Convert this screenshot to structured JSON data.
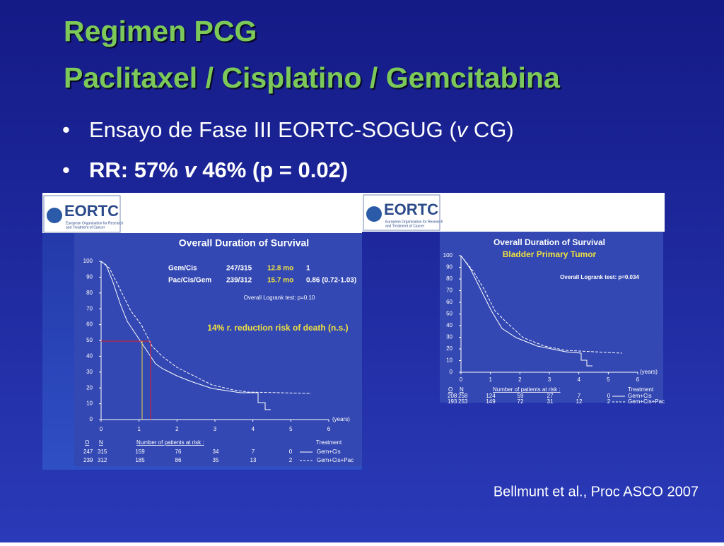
{
  "title": [
    "Regimen PCG",
    "Paclitaxel / Cisplatino / Gemcitabina"
  ],
  "bullets": [
    [
      "Ensayo de Fase III EORTC-SOGUG (",
      "v",
      " CG)"
    ],
    [
      "RR: 57% ",
      "v",
      "  46% (p = 0.02)"
    ]
  ],
  "citation": "Bellmunt et al., Proc ASCO 2007",
  "left_figure": {
    "logo": "EORTC",
    "logo_subtitle": [
      "European Organisation for Research",
      "and Treatment of Cancer"
    ],
    "title": "Overall Duration of Survival",
    "arms": [
      [
        "Gem/Cis",
        "247/315",
        "12.8 mo",
        "1"
      ],
      [
        "Pac/Cis/Gem",
        "239/312",
        "15.7 mo",
        "0.86 (0.72-1.03)"
      ]
    ],
    "logrank": "Overall Logrank test: p=0.10",
    "annotation": "14% r. reduction risk of death  (n.s.)",
    "yticks": [
      0,
      10,
      20,
      30,
      40,
      50,
      60,
      70,
      80,
      90,
      100
    ],
    "xticks": [
      0,
      1,
      2,
      3,
      4,
      5,
      6
    ],
    "x_unit": "(years)",
    "risk_headers": [
      "O",
      "N",
      "Number of patients at risk :",
      "Treatment"
    ],
    "risk_rows": [
      [
        "247",
        "315",
        "159",
        "76",
        "34",
        "7",
        "0",
        "Gem+Cis"
      ],
      [
        "239",
        "312",
        "185",
        "86",
        "35",
        "13",
        "2",
        "Gem+Cis+Pac"
      ]
    ]
  },
  "right_figure": {
    "logo": "EORTC",
    "logo_subtitle": [
      "European Organisation for Research",
      "and Treatment of Cancer"
    ],
    "title": "Overall Duration of Survival",
    "subtitle": "Bladder Primary Tumor",
    "logrank": "Overall Logrank test: p=0.034",
    "yticks": [
      0,
      10,
      20,
      30,
      40,
      50,
      60,
      70,
      80,
      90,
      100
    ],
    "xticks": [
      0,
      1,
      2,
      3,
      4,
      5,
      6
    ],
    "x_unit": "(years)",
    "risk_headers": [
      "O",
      "N",
      "Number of patients at risk :",
      "Treatment"
    ],
    "risk_rows": [
      [
        "208",
        "258",
        "124",
        "59",
        "27",
        "7",
        "0",
        "Gem+Cis"
      ],
      [
        "193",
        "253",
        "149",
        "72",
        "31",
        "12",
        "2",
        "Gem+Cis+Pac"
      ]
    ]
  }
}
